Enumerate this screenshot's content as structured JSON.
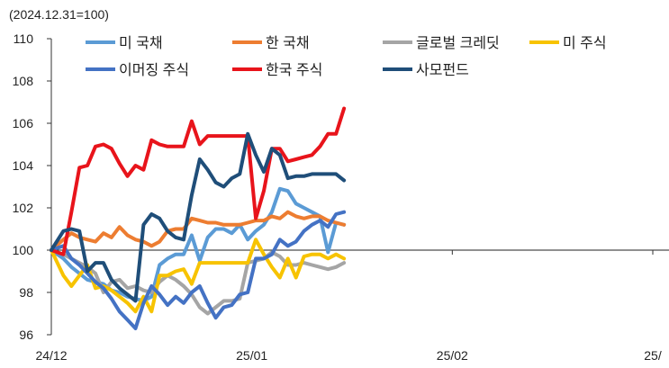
{
  "chart_data": {
    "type": "line",
    "unit_label": "(2024.12.31=100)",
    "ylim": [
      96,
      110
    ],
    "yticks": [
      96,
      98,
      100,
      102,
      104,
      106,
      108,
      110
    ],
    "x_range": [
      0,
      3
    ],
    "x_ticks": [
      {
        "pos": 0,
        "label": "24/12"
      },
      {
        "pos": 1,
        "label": "25/01"
      },
      {
        "pos": 2,
        "label": "25/02"
      },
      {
        "pos": 3,
        "label": "25/"
      }
    ],
    "grid": false,
    "legend_position": "top",
    "series": [
      {
        "name": "미 국채",
        "color": "#5B9BD5",
        "x": [
          0.0,
          0.06,
          0.1,
          0.14,
          0.18,
          0.22,
          0.26,
          0.3,
          0.34,
          0.38,
          0.42,
          0.46,
          0.5,
          0.54,
          0.58,
          0.62,
          0.66,
          0.7,
          0.74,
          0.78,
          0.82,
          0.86,
          0.9,
          0.94,
          0.98,
          1.02,
          1.06,
          1.1,
          1.14,
          1.18,
          1.22,
          1.26,
          1.3,
          1.34,
          1.38,
          1.42,
          1.46
        ],
        "values": [
          100,
          99.6,
          99.2,
          98.9,
          98.6,
          98.5,
          98.4,
          98.1,
          98.0,
          97.8,
          97.7,
          97.6,
          97.8,
          99.3,
          99.6,
          99.8,
          99.8,
          100.7,
          99.5,
          100.6,
          101.0,
          101.0,
          100.8,
          101.2,
          100.5,
          100.9,
          101.2,
          101.8,
          102.9,
          102.8,
          102.2,
          102.0,
          101.8,
          101.6,
          99.9,
          101.3,
          101.2
        ]
      },
      {
        "name": "한 국채",
        "color": "#ED7D31",
        "x": [
          0.0,
          0.06,
          0.1,
          0.14,
          0.18,
          0.22,
          0.26,
          0.3,
          0.34,
          0.38,
          0.42,
          0.46,
          0.5,
          0.54,
          0.58,
          0.62,
          0.66,
          0.7,
          0.74,
          0.78,
          0.82,
          0.86,
          0.9,
          0.94,
          0.98,
          1.02,
          1.06,
          1.1,
          1.14,
          1.18,
          1.22,
          1.26,
          1.3,
          1.34,
          1.38,
          1.42,
          1.46
        ],
        "values": [
          100,
          100.5,
          100.8,
          100.6,
          100.5,
          100.4,
          100.8,
          100.6,
          101.1,
          100.7,
          100.5,
          100.4,
          100.2,
          100.4,
          100.9,
          101.0,
          101.0,
          101.5,
          101.4,
          101.3,
          101.3,
          101.2,
          101.2,
          101.2,
          101.3,
          101.4,
          101.4,
          101.6,
          101.5,
          101.8,
          101.6,
          101.5,
          101.6,
          101.6,
          101.4,
          101.3,
          101.2
        ]
      },
      {
        "name": "글로벌 크레딧",
        "color": "#A5A5A5",
        "x": [
          0.0,
          0.06,
          0.1,
          0.14,
          0.18,
          0.22,
          0.26,
          0.3,
          0.34,
          0.38,
          0.42,
          0.46,
          0.5,
          0.54,
          0.58,
          0.62,
          0.66,
          0.7,
          0.74,
          0.78,
          0.82,
          0.86,
          0.9,
          0.94,
          0.98,
          1.02,
          1.06,
          1.1,
          1.14,
          1.18,
          1.22,
          1.26,
          1.3,
          1.34,
          1.38,
          1.42,
          1.46
        ],
        "values": [
          100,
          99.8,
          99.6,
          99.4,
          99.2,
          98.9,
          98.0,
          98.5,
          98.6,
          98.2,
          98.3,
          98.1,
          98.0,
          98.5,
          98.8,
          98.6,
          98.3,
          97.9,
          97.3,
          97.0,
          97.3,
          97.6,
          97.6,
          97.7,
          99.4,
          99.5,
          99.6,
          99.9,
          99.7,
          99.3,
          99.3,
          99.4,
          99.3,
          99.2,
          99.1,
          99.2,
          99.4
        ]
      },
      {
        "name": "미 주식",
        "color": "#F7C300",
        "x": [
          0.0,
          0.06,
          0.1,
          0.14,
          0.18,
          0.22,
          0.26,
          0.3,
          0.34,
          0.38,
          0.42,
          0.46,
          0.5,
          0.54,
          0.58,
          0.62,
          0.66,
          0.7,
          0.74,
          0.78,
          0.82,
          0.86,
          0.9,
          0.94,
          0.98,
          1.02,
          1.06,
          1.1,
          1.14,
          1.18,
          1.22,
          1.26,
          1.3,
          1.34,
          1.38,
          1.42,
          1.46
        ],
        "values": [
          100,
          98.8,
          98.3,
          98.8,
          99.3,
          98.2,
          98.3,
          98.1,
          97.8,
          97.5,
          97.1,
          97.8,
          97.1,
          98.8,
          98.8,
          99.0,
          99.1,
          98.4,
          99.4,
          99.4,
          99.4,
          99.4,
          99.4,
          99.4,
          99.4,
          100.5,
          99.8,
          99.2,
          98.7,
          99.6,
          98.7,
          99.7,
          99.8,
          99.8,
          99.6,
          99.8,
          99.6
        ]
      },
      {
        "name": "이머징 주식",
        "color": "#4472C4",
        "x": [
          0.0,
          0.06,
          0.1,
          0.14,
          0.18,
          0.22,
          0.26,
          0.3,
          0.34,
          0.38,
          0.42,
          0.46,
          0.5,
          0.54,
          0.58,
          0.62,
          0.66,
          0.7,
          0.74,
          0.78,
          0.82,
          0.86,
          0.9,
          0.94,
          0.98,
          1.02,
          1.06,
          1.1,
          1.14,
          1.18,
          1.22,
          1.26,
          1.3,
          1.34,
          1.38,
          1.42,
          1.46
        ],
        "values": [
          100,
          100.2,
          99.6,
          99.3,
          98.9,
          98.5,
          98.2,
          97.7,
          97.1,
          96.7,
          96.3,
          97.5,
          98.3,
          97.9,
          97.4,
          97.8,
          97.5,
          98.0,
          98.3,
          97.5,
          96.8,
          97.3,
          97.4,
          97.9,
          98.0,
          99.6,
          99.6,
          99.8,
          100.5,
          100.2,
          100.4,
          100.9,
          101.2,
          101.4,
          101.1,
          101.7,
          101.8
        ]
      },
      {
        "name": "한국 주식",
        "color": "#E8141B",
        "x": [
          0.0,
          0.06,
          0.1,
          0.14,
          0.18,
          0.22,
          0.26,
          0.3,
          0.34,
          0.38,
          0.42,
          0.46,
          0.5,
          0.54,
          0.58,
          0.62,
          0.66,
          0.7,
          0.74,
          0.78,
          0.82,
          0.86,
          0.9,
          0.94,
          0.98,
          1.02,
          1.06,
          1.1,
          1.14,
          1.18,
          1.22,
          1.26,
          1.3,
          1.34,
          1.38,
          1.42,
          1.46
        ],
        "values": [
          100,
          99.8,
          101.8,
          103.9,
          104.0,
          104.9,
          105.0,
          104.8,
          104.1,
          103.5,
          104.0,
          103.8,
          105.2,
          105.0,
          104.9,
          104.9,
          104.9,
          106.1,
          105.0,
          105.4,
          105.4,
          105.4,
          105.4,
          105.4,
          105.4,
          101.5,
          102.8,
          104.8,
          104.8,
          104.2,
          104.3,
          104.4,
          104.5,
          104.9,
          105.5,
          105.5,
          106.7
        ]
      },
      {
        "name": "사모펀드",
        "color": "#1F4E79",
        "x": [
          0.0,
          0.06,
          0.1,
          0.14,
          0.18,
          0.22,
          0.26,
          0.3,
          0.34,
          0.38,
          0.42,
          0.46,
          0.5,
          0.54,
          0.58,
          0.62,
          0.66,
          0.7,
          0.74,
          0.78,
          0.82,
          0.86,
          0.9,
          0.94,
          0.98,
          1.02,
          1.06,
          1.1,
          1.14,
          1.18,
          1.22,
          1.26,
          1.3,
          1.34,
          1.38,
          1.42,
          1.46
        ],
        "values": [
          100,
          100.9,
          101.0,
          100.9,
          99.0,
          99.4,
          99.4,
          98.6,
          98.2,
          97.9,
          97.6,
          101.2,
          101.7,
          101.5,
          100.9,
          100.6,
          100.5,
          102.6,
          104.3,
          103.8,
          103.2,
          103.0,
          103.4,
          103.6,
          105.5,
          104.5,
          103.7,
          104.8,
          104.5,
          103.4,
          103.5,
          103.5,
          103.6,
          103.6,
          103.6,
          103.6,
          103.3
        ]
      }
    ]
  }
}
